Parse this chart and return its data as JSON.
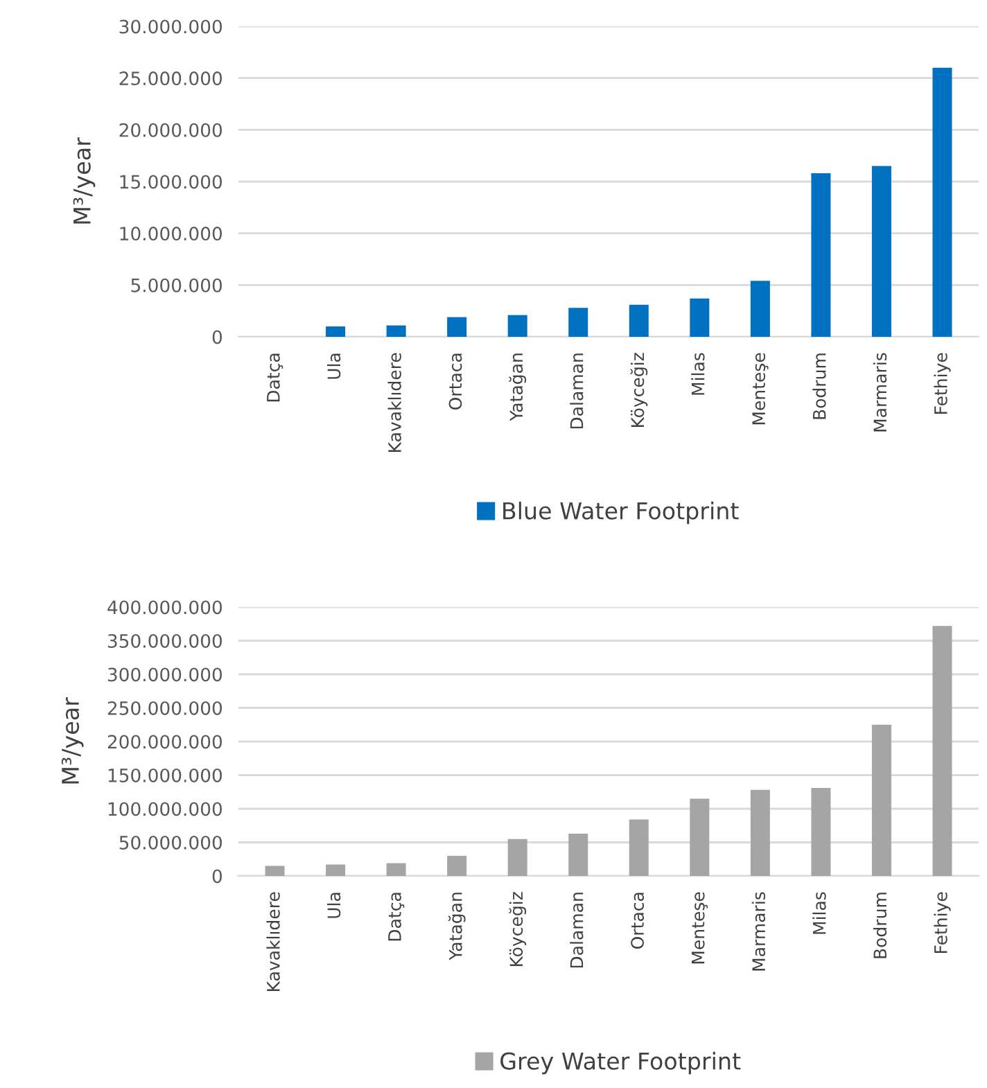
{
  "chart_data": [
    {
      "type": "bar",
      "ylabel": "M³/year",
      "categories": [
        "Datça",
        "Ula",
        "Kavaklıdere",
        "Ortaca",
        "Yatağan",
        "Dalaman",
        "Köyceğiz",
        "Milas",
        "Menteşe",
        "Bodrum",
        "Marmaris",
        "Fethiye"
      ],
      "series": [
        {
          "name": "Blue Water Footprint",
          "color": "#0070c0",
          "values": [
            0,
            1000000,
            1100000,
            1900000,
            2100000,
            2800000,
            3100000,
            3700000,
            5400000,
            15800000,
            16500000,
            26000000
          ]
        }
      ],
      "ylim": [
        0,
        30000000
      ],
      "yticks": [
        {
          "value": 0,
          "label": "0"
        },
        {
          "value": 5000000,
          "label": "5.000.000"
        },
        {
          "value": 10000000,
          "label": "10.000.000"
        },
        {
          "value": 15000000,
          "label": "15.000.000"
        },
        {
          "value": 20000000,
          "label": "20.000.000"
        },
        {
          "value": 25000000,
          "label": "25.000.000"
        },
        {
          "value": 30000000,
          "label": "30.000.000"
        }
      ],
      "grid": "y",
      "legend": "bottom"
    },
    {
      "type": "bar",
      "ylabel": "M³/year",
      "categories": [
        "Kavaklıdere",
        "Ula",
        "Datça",
        "Yatağan",
        "Köyceğiz",
        "Dalaman",
        "Ortaca",
        "Menteşe",
        "Marmaris",
        "Milas",
        "Bodrum",
        "Fethiye"
      ],
      "series": [
        {
          "name": "Grey Water Footprint",
          "color": "#a5a5a5",
          "values": [
            15000000,
            17000000,
            19000000,
            30000000,
            55000000,
            63000000,
            84000000,
            115000000,
            128000000,
            131000000,
            225000000,
            372000000
          ]
        }
      ],
      "ylim": [
        0,
        400000000
      ],
      "yticks": [
        {
          "value": 0,
          "label": "0"
        },
        {
          "value": 50000000,
          "label": "50.000.000"
        },
        {
          "value": 100000000,
          "label": "100.000.000"
        },
        {
          "value": 150000000,
          "label": "150.000.000"
        },
        {
          "value": 200000000,
          "label": "200.000.000"
        },
        {
          "value": 250000000,
          "label": "250.000.000"
        },
        {
          "value": 300000000,
          "label": "300.000.000"
        },
        {
          "value": 350000000,
          "label": "350.000.000"
        },
        {
          "value": 400000000,
          "label": "400.000.000"
        }
      ],
      "grid": "y",
      "legend": "bottom"
    }
  ]
}
